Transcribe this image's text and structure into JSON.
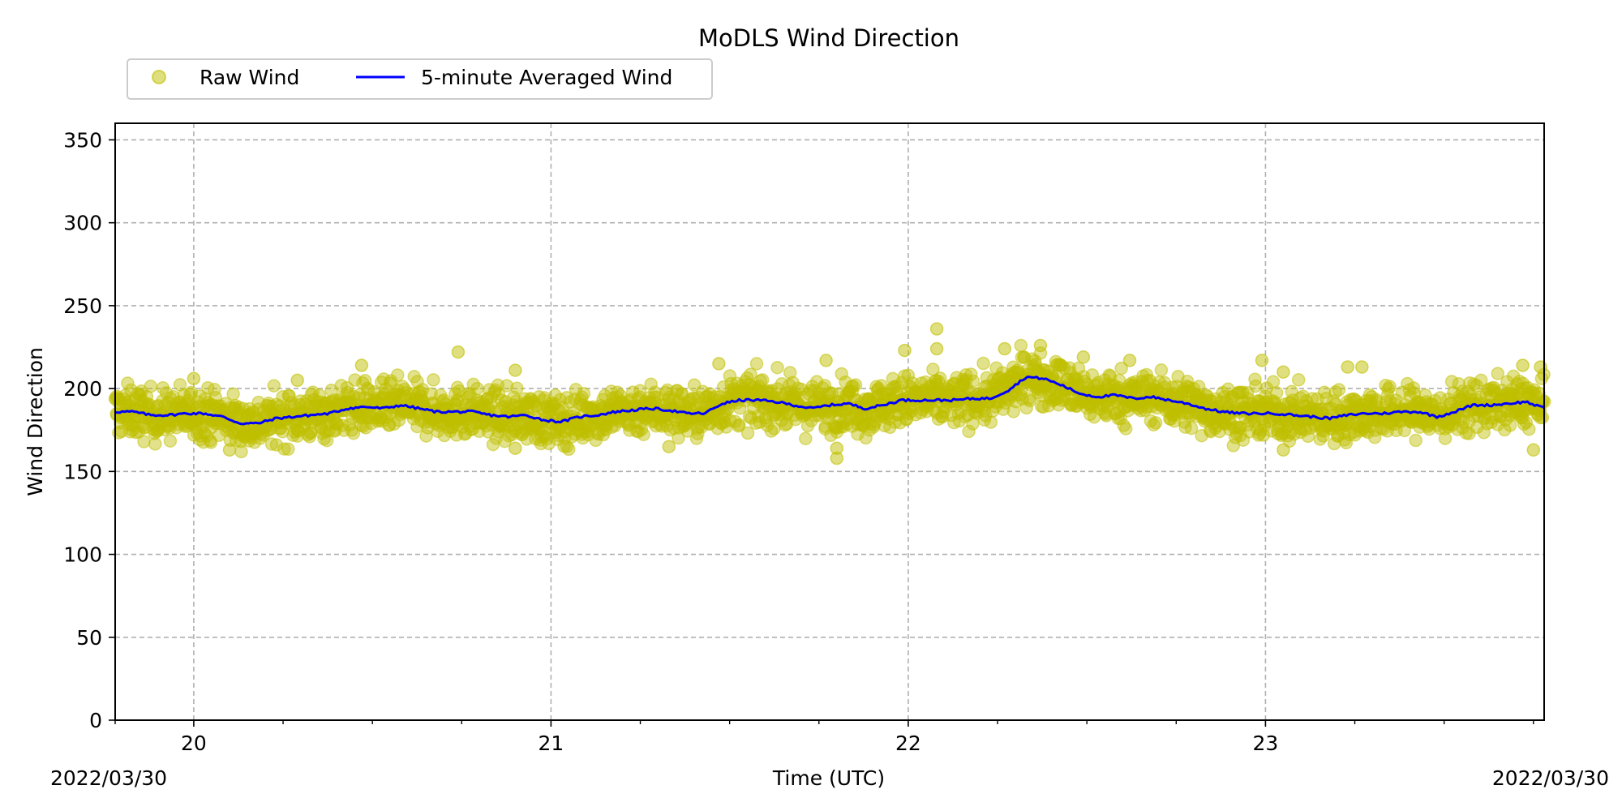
{
  "chart_data": {
    "type": "scatter",
    "title": "MoDLS Wind Direction",
    "xlabel": "Time (UTC)",
    "ylabel": "Wind Direction",
    "x_unit": "hour (UTC) of 2022/03/30",
    "xlim": [
      19.78,
      23.78
    ],
    "ylim": [
      0,
      360
    ],
    "x_ticks": [
      20,
      21,
      22,
      23
    ],
    "x_tick_labels": [
      "20",
      "21",
      "22",
      "23"
    ],
    "x_minor_ticks": [
      19.78,
      20.25,
      20.5,
      20.75,
      21.25,
      21.5,
      21.75,
      22.25,
      22.5,
      22.75,
      23.25,
      23.5,
      23.75
    ],
    "y_ticks": [
      0,
      50,
      100,
      150,
      200,
      250,
      300,
      350
    ],
    "date_label_left": "2022/03/30",
    "date_label_right": "2022/03/30",
    "grid": true,
    "legend_position": "top-left, above plot",
    "series": [
      {
        "name": "Raw Wind",
        "kind": "scatter",
        "color": "#bfbf00",
        "note": "dense scatter band approximately ±15 around the averaged line",
        "outliers": [
          {
            "x": 20.0,
            "y": 206
          },
          {
            "x": 20.29,
            "y": 205
          },
          {
            "x": 20.47,
            "y": 214
          },
          {
            "x": 20.74,
            "y": 222
          },
          {
            "x": 20.9,
            "y": 211
          },
          {
            "x": 21.47,
            "y": 215
          },
          {
            "x": 21.77,
            "y": 217
          },
          {
            "x": 21.8,
            "y": 158
          },
          {
            "x": 21.8,
            "y": 164
          },
          {
            "x": 21.99,
            "y": 223
          },
          {
            "x": 22.08,
            "y": 236
          },
          {
            "x": 22.08,
            "y": 224
          },
          {
            "x": 22.27,
            "y": 224
          },
          {
            "x": 22.37,
            "y": 226
          },
          {
            "x": 22.49,
            "y": 219
          },
          {
            "x": 22.62,
            "y": 217
          },
          {
            "x": 22.99,
            "y": 217
          },
          {
            "x": 23.05,
            "y": 210
          },
          {
            "x": 23.23,
            "y": 213
          },
          {
            "x": 23.27,
            "y": 213
          },
          {
            "x": 23.72,
            "y": 214
          },
          {
            "x": 23.77,
            "y": 213
          },
          {
            "x": 20.1,
            "y": 163
          },
          {
            "x": 20.9,
            "y": 164
          },
          {
            "x": 21.33,
            "y": 165
          },
          {
            "x": 23.05,
            "y": 163
          },
          {
            "x": 23.75,
            "y": 163
          }
        ]
      },
      {
        "name": "5-minute Averaged Wind",
        "kind": "line",
        "color": "#0000ff",
        "x": [
          19.78,
          19.83,
          19.88,
          19.93,
          19.98,
          20.03,
          20.08,
          20.13,
          20.18,
          20.23,
          20.28,
          20.33,
          20.38,
          20.43,
          20.48,
          20.53,
          20.58,
          20.63,
          20.68,
          20.73,
          20.78,
          20.83,
          20.88,
          20.93,
          20.98,
          21.03,
          21.08,
          21.13,
          21.18,
          21.23,
          21.28,
          21.33,
          21.38,
          21.43,
          21.48,
          21.53,
          21.58,
          21.63,
          21.68,
          21.73,
          21.78,
          21.83,
          21.88,
          21.93,
          21.98,
          22.03,
          22.08,
          22.13,
          22.18,
          22.23,
          22.28,
          22.33,
          22.38,
          22.43,
          22.48,
          22.53,
          22.58,
          22.63,
          22.68,
          22.73,
          22.78,
          22.83,
          22.88,
          22.93,
          22.98,
          23.03,
          23.08,
          23.13,
          23.18,
          23.23,
          23.28,
          23.33,
          23.38,
          23.43,
          23.48,
          23.53,
          23.58,
          23.63,
          23.68,
          23.73,
          23.78
        ],
        "y": [
          186,
          186,
          184,
          184,
          185,
          185,
          183,
          179,
          179,
          182,
          183,
          184,
          185,
          188,
          189,
          188,
          190,
          188,
          186,
          186,
          186,
          184,
          183,
          184,
          181,
          180,
          183,
          184,
          186,
          187,
          188,
          187,
          185,
          185,
          191,
          193,
          193,
          192,
          190,
          188,
          190,
          191,
          188,
          190,
          193,
          193,
          193,
          193,
          194,
          194,
          199,
          207,
          206,
          202,
          197,
          195,
          196,
          194,
          195,
          193,
          191,
          188,
          186,
          185,
          185,
          185,
          184,
          183,
          182,
          184,
          185,
          185,
          186,
          186,
          183,
          186,
          190,
          190,
          191,
          192,
          188
        ]
      }
    ]
  }
}
